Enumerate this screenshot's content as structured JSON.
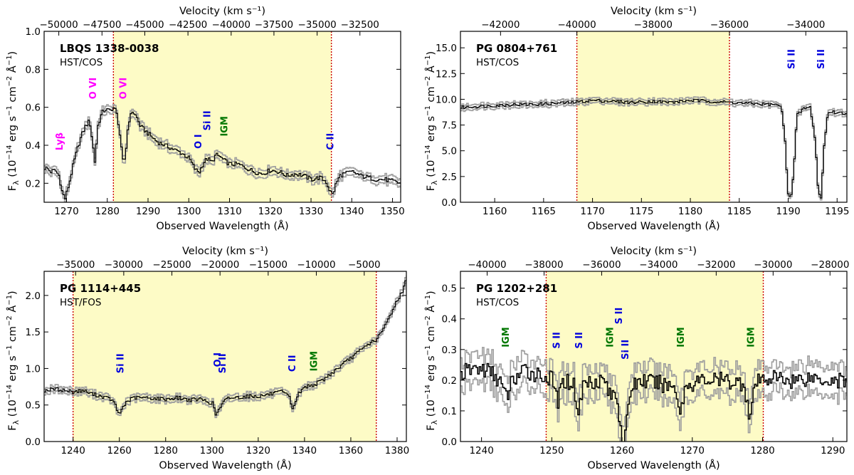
{
  "figure": {
    "colors": {
      "shade": "#fdfbc6",
      "boundary": "#cc0000",
      "spectrum": "#000000",
      "error": "#9e9e9e",
      "magenta": "#ff00ff",
      "blue": "#0000dd",
      "green": "#007700"
    }
  },
  "chart_data": [
    {
      "type": "line",
      "title": "LBQS 1338-0038",
      "subtitle": "HST/COS",
      "xlabel": "Observed Wavelength (Å)",
      "ylabel": "F_λ (10^-14 erg s^-1 cm^-2 Å^-1)",
      "top_axis_label": "Velocity (km s⁻¹)",
      "xlim": [
        1264.5,
        1352
      ],
      "ylim": [
        0.1,
        1.0
      ],
      "x_ticks": [
        1270,
        1280,
        1290,
        1300,
        1310,
        1320,
        1330,
        1340,
        1350
      ],
      "x_tick_labels": [
        "1270",
        "1280",
        "1290",
        "1300",
        "1310",
        "1320",
        "1330",
        "1340",
        "1350"
      ],
      "y_ticks": [
        0.2,
        0.4,
        0.6,
        0.8,
        1.0
      ],
      "y_tick_labels": [
        "0.2",
        "0.4",
        "0.6",
        "0.8",
        "1.0"
      ],
      "top_ticks": [
        1268.1,
        1278.7,
        1289.2,
        1299.8,
        1310.4,
        1320.9,
        1331.5,
        1342.0,
        1352.6
      ],
      "top_tick_labels": [
        "−50000",
        "−47500",
        "−45000",
        "−42500",
        "−40000",
        "−37500",
        "−35000",
        "−32500",
        ""
      ],
      "shaded_region": [
        1281.5,
        1335
      ],
      "spectrum": {
        "x": [
          1265,
          1266,
          1267,
          1268,
          1268.8,
          1269.5,
          1270.5,
          1271.5,
          1272.5,
          1273.5,
          1274.5,
          1275.5,
          1276.2,
          1276.8,
          1277.5,
          1278.5,
          1279.5,
          1280.5,
          1281.3,
          1282,
          1282.7,
          1283.3,
          1283.8,
          1284.3,
          1285,
          1286,
          1287,
          1288,
          1289,
          1290,
          1292,
          1294,
          1296,
          1298,
          1300,
          1301.5,
          1302.5,
          1303.5,
          1304.5,
          1305.5,
          1306.5,
          1307.5,
          1308.5,
          1310,
          1312,
          1314,
          1316,
          1318,
          1320,
          1322,
          1324,
          1326,
          1328,
          1330,
          1332,
          1333.5,
          1334.5,
          1335.2,
          1336,
          1337,
          1338,
          1340,
          1342,
          1344,
          1346,
          1348,
          1350,
          1352
        ],
        "flux": [
          0.28,
          0.26,
          0.27,
          0.24,
          0.15,
          0.12,
          0.2,
          0.3,
          0.38,
          0.45,
          0.5,
          0.53,
          0.42,
          0.31,
          0.5,
          0.57,
          0.59,
          0.58,
          0.6,
          0.58,
          0.5,
          0.38,
          0.3,
          0.35,
          0.52,
          0.58,
          0.55,
          0.5,
          0.48,
          0.46,
          0.42,
          0.4,
          0.38,
          0.36,
          0.33,
          0.27,
          0.26,
          0.31,
          0.33,
          0.31,
          0.35,
          0.34,
          0.32,
          0.3,
          0.3,
          0.28,
          0.26,
          0.25,
          0.27,
          0.26,
          0.24,
          0.25,
          0.24,
          0.22,
          0.23,
          0.21,
          0.16,
          0.14,
          0.2,
          0.24,
          0.25,
          0.26,
          0.24,
          0.23,
          0.22,
          0.22,
          0.21,
          0.2
        ],
        "noise": 0.012
      },
      "annotations": [
        {
          "text": "Lyβ",
          "x": 1268.2,
          "y": 0.42,
          "color": "magenta"
        },
        {
          "text": "O VI",
          "x": 1276.4,
          "y": 0.7,
          "color": "magenta"
        },
        {
          "text": "O VI",
          "x": 1283.8,
          "y": 0.7,
          "color": "magenta"
        },
        {
          "text": "O I",
          "x": 1302.2,
          "y": 0.42,
          "color": "blue"
        },
        {
          "text": "Si II",
          "x": 1304.4,
          "y": 0.53,
          "color": "blue"
        },
        {
          "text": "IGM",
          "x": 1308.6,
          "y": 0.5,
          "color": "green"
        },
        {
          "text": "C II",
          "x": 1334.6,
          "y": 0.42,
          "color": "blue"
        }
      ]
    },
    {
      "type": "line",
      "title": "PG 0804+761",
      "subtitle": "HST/COS",
      "xlabel": "Observed Wavelength (Å)",
      "ylabel": "F_λ (10^-14 erg s^-1 cm^-2 Å^-1)",
      "top_axis_label": "Velocity (km s⁻¹)",
      "xlim": [
        1156.5,
        1196
      ],
      "ylim": [
        0.0,
        16.6
      ],
      "x_ticks": [
        1160,
        1165,
        1170,
        1175,
        1180,
        1185,
        1190,
        1195
      ],
      "x_tick_labels": [
        "1160",
        "1165",
        "1170",
        "1175",
        "1180",
        "1185",
        "1190",
        "1195"
      ],
      "y_ticks": [
        0.0,
        2.5,
        5.0,
        7.5,
        10.0,
        12.5,
        15.0
      ],
      "y_tick_labels": [
        "0.0",
        "2.5",
        "5.0",
        "7.5",
        "10.0",
        "12.5",
        "15.0"
      ],
      "top_ticks": [
        1160.6,
        1168.4,
        1176.2,
        1184.0,
        1191.8
      ],
      "top_tick_labels": [
        "−42000",
        "−40000",
        "−38000",
        "−36000",
        "−34000"
      ],
      "shaded_region": [
        1168.4,
        1184.0
      ],
      "spectrum": {
        "x": [
          1156.5,
          1158,
          1160,
          1162,
          1164,
          1166,
          1168,
          1170,
          1172,
          1174,
          1176,
          1178,
          1180,
          1182,
          1184,
          1186,
          1188,
          1189.2,
          1189.6,
          1189.9,
          1190.2,
          1190.5,
          1190.8,
          1191.5,
          1192.2,
          1192.7,
          1193.0,
          1193.3,
          1193.6,
          1194.0,
          1195,
          1196
        ],
        "flux": [
          9.2,
          9.3,
          9.4,
          9.5,
          9.5,
          9.6,
          9.7,
          9.9,
          9.8,
          9.7,
          9.8,
          9.7,
          9.9,
          9.8,
          9.7,
          9.6,
          9.5,
          9.4,
          6.0,
          1.0,
          0.4,
          3.0,
          8.4,
          9.1,
          9.2,
          6.0,
          1.0,
          0.4,
          5.5,
          8.8,
          8.7,
          8.6
        ],
        "noise": 0.15
      },
      "annotations": [
        {
          "text": "Si II",
          "x": 1190.3,
          "y": 13.9,
          "color": "blue"
        },
        {
          "text": "Si II",
          "x": 1193.3,
          "y": 13.9,
          "color": "blue"
        }
      ]
    },
    {
      "type": "line",
      "title": "PG 1114+445",
      "subtitle": "HST/FOS",
      "xlabel": "Observed Wavelength (Å)",
      "ylabel": "F_λ (10^-14 erg s^-1 cm^-2 Å^-1)",
      "top_axis_label": "Velocity (km s⁻¹)",
      "xlim": [
        1227.5,
        1384
      ],
      "ylim": [
        0.0,
        2.33
      ],
      "x_ticks": [
        1240,
        1260,
        1280,
        1300,
        1320,
        1340,
        1360,
        1380
      ],
      "x_tick_labels": [
        "1240",
        "1260",
        "1280",
        "1300",
        "1320",
        "1340",
        "1360",
        "1380"
      ],
      "y_ticks": [
        0.0,
        0.5,
        1.0,
        1.5,
        2.0
      ],
      "y_tick_labels": [
        "0.0",
        "0.5",
        "1.0",
        "1.5",
        "2.0"
      ],
      "top_ticks": [
        1241.1,
        1261.9,
        1282.7,
        1303.5,
        1324.3,
        1345.1,
        1365.8
      ],
      "top_tick_labels": [
        "−35000",
        "−30000",
        "−25000",
        "−20000",
        "−15000",
        "−10000",
        "−5000"
      ],
      "shaded_region": [
        1240,
        1371
      ],
      "spectrum": {
        "x": [
          1228,
          1232,
          1236,
          1240,
          1244,
          1248,
          1252,
          1256,
          1258,
          1259.5,
          1261,
          1263,
          1266,
          1270,
          1275,
          1280,
          1285,
          1290,
          1295,
          1300,
          1301.5,
          1302.5,
          1303.5,
          1305,
          1307,
          1310,
          1315,
          1320,
          1325,
          1330,
          1333,
          1334.3,
          1335.5,
          1337,
          1340,
          1344,
          1348,
          1352,
          1356,
          1360,
          1364,
          1368,
          1371,
          1374,
          1377,
          1380,
          1382,
          1384
        ],
        "flux": [
          0.7,
          0.72,
          0.7,
          0.68,
          0.7,
          0.65,
          0.62,
          0.58,
          0.5,
          0.36,
          0.46,
          0.55,
          0.6,
          0.6,
          0.59,
          0.58,
          0.6,
          0.57,
          0.58,
          0.52,
          0.36,
          0.42,
          0.48,
          0.55,
          0.6,
          0.6,
          0.62,
          0.62,
          0.65,
          0.68,
          0.62,
          0.45,
          0.52,
          0.65,
          0.75,
          0.78,
          0.85,
          0.95,
          1.05,
          1.15,
          1.25,
          1.35,
          1.4,
          1.55,
          1.75,
          1.95,
          2.05,
          2.25
        ],
        "noise": 0.025
      },
      "annotations": [
        {
          "text": "Si II",
          "x": 1260.3,
          "y": 1.07,
          "color": "blue"
        },
        {
          "text": "O I",
          "x": 1302.2,
          "y": 1.12,
          "color": "blue"
        },
        {
          "text": "Si II",
          "x": 1304.4,
          "y": 1.07,
          "color": "blue"
        },
        {
          "text": "C II",
          "x": 1334.5,
          "y": 1.07,
          "color": "blue"
        },
        {
          "text": "IGM",
          "x": 1343.8,
          "y": 1.1,
          "color": "green"
        }
      ]
    },
    {
      "type": "line",
      "title": "PG 1202+281",
      "subtitle": "HST/COS",
      "xlabel": "Observed Wavelength (Å)",
      "ylabel": "F_λ (10^-14 erg s^-1 cm^-2 Å^-1)",
      "top_axis_label": "Velocity (km s⁻¹)",
      "xlim": [
        1237,
        1292
      ],
      "ylim": [
        0.0,
        0.555
      ],
      "x_ticks": [
        1240,
        1250,
        1260,
        1270,
        1280,
        1290
      ],
      "x_tick_labels": [
        "1240",
        "1250",
        "1260",
        "1270",
        "1280",
        "1290"
      ],
      "y_ticks": [
        0.0,
        0.1,
        0.2,
        0.3,
        0.4,
        0.5
      ],
      "y_tick_labels": [
        "0.0",
        "0.1",
        "0.2",
        "0.3",
        "0.4",
        "0.5"
      ],
      "top_ticks": [
        1240.8,
        1248.9,
        1257.1,
        1265.2,
        1273.4,
        1281.5,
        1289.6
      ],
      "top_tick_labels": [
        "−40000",
        "−38000",
        "−36000",
        "−34000",
        "−32000",
        "−30000",
        "−28000"
      ],
      "shaded_region": [
        1249.2,
        1280.1
      ],
      "spectrum": {
        "x": [
          1237,
          1239,
          1241,
          1242.5,
          1243.4,
          1244.3,
          1246,
          1248,
          1250,
          1250.8,
          1251.6,
          1253,
          1253.7,
          1254.4,
          1256,
          1257.5,
          1258.3,
          1259,
          1259.6,
          1260.0,
          1260.3,
          1260.7,
          1261.2,
          1262.5,
          1265,
          1267.5,
          1268.2,
          1268.9,
          1271,
          1274,
          1277.3,
          1278.1,
          1278.9,
          1281,
          1284,
          1287,
          1290,
          1292
        ],
        "flux": [
          0.22,
          0.24,
          0.23,
          0.2,
          0.14,
          0.2,
          0.23,
          0.22,
          0.2,
          0.13,
          0.2,
          0.19,
          0.09,
          0.19,
          0.2,
          0.2,
          0.14,
          0.17,
          0.07,
          0.01,
          0.0,
          0.08,
          0.18,
          0.2,
          0.19,
          0.18,
          0.09,
          0.18,
          0.2,
          0.2,
          0.19,
          0.07,
          0.19,
          0.21,
          0.2,
          0.21,
          0.2,
          0.2
        ],
        "noise": 0.028
      },
      "annotations": [
        {
          "text": "IGM",
          "x": 1243.4,
          "y": 0.34,
          "color": "green"
        },
        {
          "text": "S II",
          "x": 1250.6,
          "y": 0.33,
          "color": "blue"
        },
        {
          "text": "S II",
          "x": 1253.8,
          "y": 0.33,
          "color": "blue"
        },
        {
          "text": "IGM",
          "x": 1258.2,
          "y": 0.34,
          "color": "green"
        },
        {
          "text": "S II",
          "x": 1259.5,
          "y": 0.41,
          "color": "blue"
        },
        {
          "text": "Si II",
          "x": 1260.4,
          "y": 0.3,
          "color": "blue"
        },
        {
          "text": "IGM",
          "x": 1268.3,
          "y": 0.34,
          "color": "green"
        },
        {
          "text": "IGM",
          "x": 1278.3,
          "y": 0.34,
          "color": "green"
        }
      ]
    }
  ]
}
